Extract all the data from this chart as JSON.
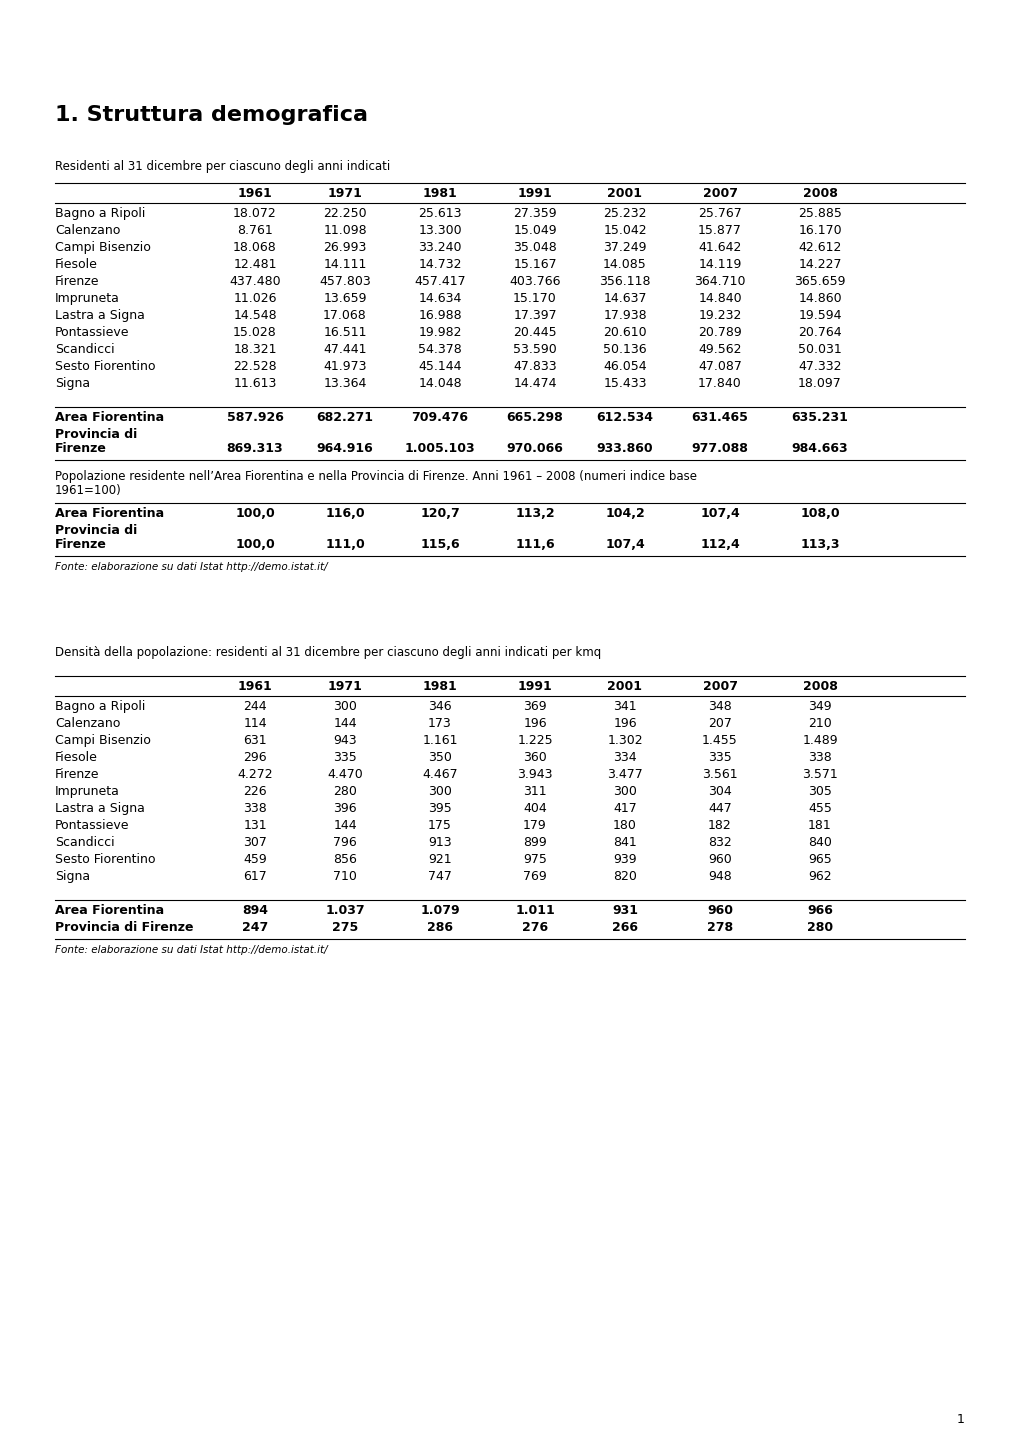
{
  "title": "1. Struttura demografica",
  "table1_subtitle": "Residenti al 31 dicembre per ciascuno degli anni indicati",
  "table1_cols": [
    "",
    "1961",
    "1971",
    "1981",
    "1991",
    "2001",
    "2007",
    "2008"
  ],
  "table1_rows": [
    [
      "Bagno a Ripoli",
      "18.072",
      "22.250",
      "25.613",
      "27.359",
      "25.232",
      "25.767",
      "25.885"
    ],
    [
      "Calenzano",
      "8.761",
      "11.098",
      "13.300",
      "15.049",
      "15.042",
      "15.877",
      "16.170"
    ],
    [
      "Campi Bisenzio",
      "18.068",
      "26.993",
      "33.240",
      "35.048",
      "37.249",
      "41.642",
      "42.612"
    ],
    [
      "Fiesole",
      "12.481",
      "14.111",
      "14.732",
      "15.167",
      "14.085",
      "14.119",
      "14.227"
    ],
    [
      "Firenze",
      "437.480",
      "457.803",
      "457.417",
      "403.766",
      "356.118",
      "364.710",
      "365.659"
    ],
    [
      "Impruneta",
      "11.026",
      "13.659",
      "14.634",
      "15.170",
      "14.637",
      "14.840",
      "14.860"
    ],
    [
      "Lastra a Signa",
      "14.548",
      "17.068",
      "16.988",
      "17.397",
      "17.938",
      "19.232",
      "19.594"
    ],
    [
      "Pontassieve",
      "15.028",
      "16.511",
      "19.982",
      "20.445",
      "20.610",
      "20.789",
      "20.764"
    ],
    [
      "Scandicci",
      "18.321",
      "47.441",
      "54.378",
      "53.590",
      "50.136",
      "49.562",
      "50.031"
    ],
    [
      "Sesto Fiorentino",
      "22.528",
      "41.973",
      "45.144",
      "47.833",
      "46.054",
      "47.087",
      "47.332"
    ],
    [
      "Signa",
      "11.613",
      "13.364",
      "14.048",
      "14.474",
      "15.433",
      "17.840",
      "18.097"
    ]
  ],
  "table1_bold_rows": [
    [
      "Area Fiorentina",
      "587.926",
      "682.271",
      "709.476",
      "665.298",
      "612.534",
      "631.465",
      "635.231"
    ],
    [
      "Provincia di",
      "",
      "",
      "",
      "",
      "",
      "",
      ""
    ],
    [
      "Firenze",
      "869.313",
      "964.916",
      "1.005.103",
      "970.066",
      "933.860",
      "977.088",
      "984.663"
    ]
  ],
  "table2_subtitle1": "Popolazione residente nell’Area Fiorentina e nella Provincia di Firenze. Anni 1961 – 2008 (numeri indice base",
  "table2_subtitle2": "1961=100)",
  "table2_bold_rows": [
    [
      "Area Fiorentina",
      "100,0",
      "116,0",
      "120,7",
      "113,2",
      "104,2",
      "107,4",
      "108,0"
    ],
    [
      "Provincia di",
      "",
      "",
      "",
      "",
      "",
      "",
      ""
    ],
    [
      "Firenze",
      "100,0",
      "111,0",
      "115,6",
      "111,6",
      "107,4",
      "112,4",
      "113,3"
    ]
  ],
  "table2_fonte": "Fonte: elaborazione su dati Istat http://demo.istat.it/",
  "table3_subtitle": "Densità della popolazione: residenti al 31 dicembre per ciascuno degli anni indicati per kmq",
  "table3_cols": [
    "",
    "1961",
    "1971",
    "1981",
    "1991",
    "2001",
    "2007",
    "2008"
  ],
  "table3_rows": [
    [
      "Bagno a Ripoli",
      "244",
      "300",
      "346",
      "369",
      "341",
      "348",
      "349"
    ],
    [
      "Calenzano",
      "114",
      "144",
      "173",
      "196",
      "196",
      "207",
      "210"
    ],
    [
      "Campi Bisenzio",
      "631",
      "943",
      "1.161",
      "1.225",
      "1.302",
      "1.455",
      "1.489"
    ],
    [
      "Fiesole",
      "296",
      "335",
      "350",
      "360",
      "334",
      "335",
      "338"
    ],
    [
      "Firenze",
      "4.272",
      "4.470",
      "4.467",
      "3.943",
      "3.477",
      "3.561",
      "3.571"
    ],
    [
      "Impruneta",
      "226",
      "280",
      "300",
      "311",
      "300",
      "304",
      "305"
    ],
    [
      "Lastra a Signa",
      "338",
      "396",
      "395",
      "404",
      "417",
      "447",
      "455"
    ],
    [
      "Pontassieve",
      "131",
      "144",
      "175",
      "179",
      "180",
      "182",
      "181"
    ],
    [
      "Scandicci",
      "307",
      "796",
      "913",
      "899",
      "841",
      "832",
      "840"
    ],
    [
      "Sesto Fiorentino",
      "459",
      "856",
      "921",
      "975",
      "939",
      "960",
      "965"
    ],
    [
      "Signa",
      "617",
      "710",
      "747",
      "769",
      "820",
      "948",
      "962"
    ]
  ],
  "table3_bold_rows": [
    [
      "Area Fiorentina",
      "894",
      "1.037",
      "1.079",
      "1.011",
      "931",
      "960",
      "966"
    ],
    [
      "Provincia di Firenze",
      "247",
      "275",
      "286",
      "276",
      "266",
      "278",
      "280"
    ]
  ],
  "table3_fonte": "Fonte: elaborazione su dati Istat http://demo.istat.it/",
  "page_number": "1",
  "bg_color": "#ffffff",
  "text_color": "#000000"
}
